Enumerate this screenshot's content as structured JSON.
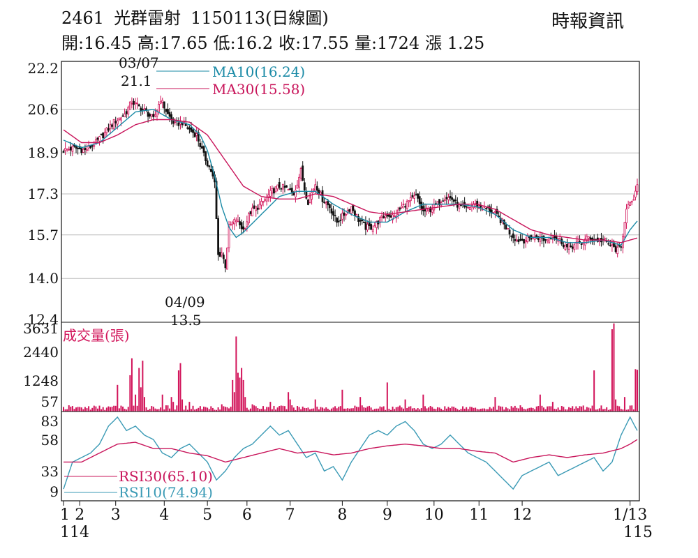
{
  "header": {
    "code": "2461",
    "name": "光群雷射",
    "date": "1150113",
    "kind": "(日線圖)",
    "source": "時報資訊",
    "ohlc": [
      {
        "label": "開:",
        "value": "16.45"
      },
      {
        "label": "高:",
        "value": "17.65"
      },
      {
        "label": "低:",
        "value": "16.2"
      },
      {
        "label": "收:",
        "value": "17.55"
      },
      {
        "label": "量:",
        "value": "1724"
      },
      {
        "label": "漲 ",
        "value": "1.25"
      }
    ]
  },
  "colors": {
    "up": "#d2145a",
    "down": "#111111",
    "ma10": "#1a8aa6",
    "ma30": "#c8145a",
    "volume": "#d2145a",
    "rsi10": "#3a9ab5",
    "rsi30": "#c8145a",
    "grid": "#bbbbbb"
  },
  "chart_data": [
    {
      "type": "candlestick",
      "y_ticks": [
        "22.2",
        "20.6",
        "18.9",
        "17.3",
        "15.7",
        "14.0",
        "12.4"
      ],
      "ylim": [
        12.4,
        22.2
      ],
      "legend": [
        {
          "label": "MA10(16.24)",
          "color": "#1a8aa6"
        },
        {
          "label": "MA30(15.58)",
          "color": "#c8145a"
        }
      ],
      "annotations": [
        {
          "date": "03/07",
          "value": "21.1"
        },
        {
          "date": "04/09",
          "value": "13.5"
        }
      ],
      "price_path": [
        [
          0,
          19.0
        ],
        [
          6,
          19.1
        ],
        [
          12,
          19.0
        ],
        [
          18,
          19.3
        ],
        [
          22,
          19.6
        ],
        [
          28,
          20.1
        ],
        [
          34,
          20.4
        ],
        [
          38,
          20.9
        ],
        [
          42,
          20.7
        ],
        [
          46,
          20.5
        ],
        [
          50,
          20.2
        ],
        [
          54,
          21.0
        ],
        [
          58,
          20.4
        ],
        [
          62,
          20.0
        ],
        [
          66,
          20.1
        ],
        [
          70,
          19.8
        ],
        [
          74,
          19.6
        ],
        [
          78,
          18.8
        ],
        [
          82,
          18.2
        ],
        [
          84,
          17.7
        ],
        [
          86,
          14.9
        ],
        [
          88,
          15.0
        ],
        [
          90,
          14.5
        ],
        [
          92,
          16.0
        ],
        [
          96,
          16.3
        ],
        [
          100,
          15.9
        ],
        [
          104,
          16.6
        ],
        [
          110,
          16.9
        ],
        [
          116,
          17.4
        ],
        [
          120,
          17.6
        ],
        [
          124,
          17.5
        ],
        [
          128,
          17.3
        ],
        [
          132,
          18.2
        ],
        [
          134,
          17.5
        ],
        [
          136,
          17.0
        ],
        [
          140,
          17.7
        ],
        [
          144,
          17.1
        ],
        [
          148,
          16.8
        ],
        [
          152,
          16.2
        ],
        [
          156,
          16.5
        ],
        [
          160,
          16.8
        ],
        [
          164,
          16.3
        ],
        [
          168,
          16.0
        ],
        [
          172,
          16.0
        ],
        [
          176,
          16.3
        ],
        [
          180,
          16.5
        ],
        [
          184,
          16.4
        ],
        [
          188,
          16.8
        ],
        [
          192,
          17.0
        ],
        [
          196,
          17.2
        ],
        [
          200,
          16.6
        ],
        [
          204,
          16.7
        ],
        [
          208,
          16.9
        ],
        [
          212,
          17.2
        ],
        [
          216,
          17.1
        ],
        [
          220,
          16.8
        ],
        [
          224,
          16.7
        ],
        [
          228,
          16.9
        ],
        [
          232,
          16.8
        ],
        [
          236,
          16.7
        ],
        [
          240,
          16.5
        ],
        [
          244,
          16.2
        ],
        [
          248,
          15.8
        ],
        [
          252,
          15.5
        ],
        [
          256,
          15.5
        ],
        [
          260,
          15.6
        ],
        [
          264,
          15.6
        ],
        [
          268,
          15.5
        ],
        [
          272,
          15.7
        ],
        [
          276,
          15.5
        ],
        [
          280,
          15.2
        ],
        [
          284,
          15.3
        ],
        [
          288,
          15.4
        ],
        [
          292,
          15.6
        ],
        [
          296,
          15.5
        ],
        [
          300,
          15.5
        ],
        [
          304,
          15.3
        ],
        [
          308,
          15.1
        ],
        [
          310,
          15.2
        ],
        [
          313,
          16.8
        ],
        [
          316,
          16.9
        ],
        [
          319,
          17.55
        ]
      ],
      "ma10_path": [
        [
          0,
          19.4
        ],
        [
          10,
          19.1
        ],
        [
          20,
          19.3
        ],
        [
          30,
          19.9
        ],
        [
          40,
          20.5
        ],
        [
          50,
          20.6
        ],
        [
          60,
          20.2
        ],
        [
          70,
          20.0
        ],
        [
          76,
          19.6
        ],
        [
          80,
          19.0
        ],
        [
          84,
          18.0
        ],
        [
          88,
          16.8
        ],
        [
          92,
          16.0
        ],
        [
          96,
          15.6
        ],
        [
          100,
          15.8
        ],
        [
          110,
          16.5
        ],
        [
          120,
          17.2
        ],
        [
          130,
          17.4
        ],
        [
          140,
          17.4
        ],
        [
          150,
          16.9
        ],
        [
          160,
          16.5
        ],
        [
          170,
          16.2
        ],
        [
          180,
          16.2
        ],
        [
          190,
          16.6
        ],
        [
          200,
          16.9
        ],
        [
          210,
          16.9
        ],
        [
          220,
          16.9
        ],
        [
          230,
          16.8
        ],
        [
          240,
          16.5
        ],
        [
          250,
          15.9
        ],
        [
          260,
          15.6
        ],
        [
          270,
          15.6
        ],
        [
          280,
          15.4
        ],
        [
          290,
          15.4
        ],
        [
          300,
          15.5
        ],
        [
          310,
          15.3
        ],
        [
          315,
          15.9
        ],
        [
          319,
          16.24
        ]
      ],
      "ma30_path": [
        [
          0,
          19.8
        ],
        [
          10,
          19.3
        ],
        [
          20,
          19.3
        ],
        [
          30,
          19.6
        ],
        [
          40,
          20.0
        ],
        [
          50,
          20.2
        ],
        [
          60,
          20.2
        ],
        [
          70,
          20.1
        ],
        [
          80,
          19.6
        ],
        [
          90,
          18.6
        ],
        [
          100,
          17.6
        ],
        [
          110,
          17.2
        ],
        [
          120,
          17.1
        ],
        [
          130,
          17.1
        ],
        [
          140,
          17.3
        ],
        [
          150,
          17.2
        ],
        [
          160,
          16.9
        ],
        [
          170,
          16.6
        ],
        [
          180,
          16.5
        ],
        [
          190,
          16.6
        ],
        [
          200,
          16.7
        ],
        [
          210,
          16.8
        ],
        [
          220,
          16.9
        ],
        [
          230,
          16.9
        ],
        [
          240,
          16.7
        ],
        [
          250,
          16.3
        ],
        [
          260,
          15.9
        ],
        [
          270,
          15.7
        ],
        [
          280,
          15.6
        ],
        [
          290,
          15.5
        ],
        [
          300,
          15.5
        ],
        [
          310,
          15.4
        ],
        [
          315,
          15.5
        ],
        [
          319,
          15.58
        ]
      ]
    },
    {
      "type": "bar",
      "title": "成交量(張)",
      "y_ticks": [
        "3631",
        "2440",
        "1248",
        "57"
      ],
      "ylim": [
        0,
        3631
      ],
      "spikes": [
        [
          30,
          1100
        ],
        [
          37,
          1500
        ],
        [
          38,
          2200
        ],
        [
          40,
          700
        ],
        [
          42,
          1800
        ],
        [
          43,
          1000
        ],
        [
          44,
          2100
        ],
        [
          45,
          600
        ],
        [
          55,
          700
        ],
        [
          60,
          600
        ],
        [
          61,
          400
        ],
        [
          64,
          1700
        ],
        [
          65,
          2000
        ],
        [
          66,
          500
        ],
        [
          70,
          400
        ],
        [
          88,
          300
        ],
        [
          94,
          1300
        ],
        [
          95,
          800
        ],
        [
          96,
          3100
        ],
        [
          97,
          1600
        ],
        [
          98,
          1400
        ],
        [
          99,
          1800
        ],
        [
          100,
          1300
        ],
        [
          101,
          600
        ],
        [
          105,
          300
        ],
        [
          115,
          400
        ],
        [
          125,
          800
        ],
        [
          126,
          500
        ],
        [
          140,
          500
        ],
        [
          155,
          900
        ],
        [
          165,
          600
        ],
        [
          180,
          1200
        ],
        [
          190,
          500
        ],
        [
          200,
          700
        ],
        [
          240,
          600
        ],
        [
          265,
          700
        ],
        [
          272,
          400
        ],
        [
          295,
          1700
        ],
        [
          305,
          3400
        ],
        [
          306,
          3640
        ],
        [
          307,
          500
        ],
        [
          312,
          600
        ],
        [
          318,
          1750
        ],
        [
          319,
          1724
        ]
      ]
    },
    {
      "type": "line",
      "y_ticks": [
        "83",
        "58",
        "33",
        "9"
      ],
      "ylim": [
        0,
        90
      ],
      "legend": [
        {
          "label": "RSI30(65.10)",
          "color": "#c8145a"
        },
        {
          "label": "RSI10(74.94)",
          "color": "#3a9ab5"
        }
      ],
      "rsi10_path": [
        [
          0,
          10
        ],
        [
          5,
          40
        ],
        [
          10,
          45
        ],
        [
          15,
          50
        ],
        [
          20,
          60
        ],
        [
          25,
          80
        ],
        [
          30,
          90
        ],
        [
          35,
          75
        ],
        [
          40,
          80
        ],
        [
          45,
          70
        ],
        [
          50,
          65
        ],
        [
          55,
          50
        ],
        [
          60,
          45
        ],
        [
          65,
          55
        ],
        [
          70,
          60
        ],
        [
          75,
          50
        ],
        [
          80,
          40
        ],
        [
          85,
          20
        ],
        [
          90,
          30
        ],
        [
          95,
          45
        ],
        [
          100,
          55
        ],
        [
          105,
          60
        ],
        [
          110,
          70
        ],
        [
          115,
          80
        ],
        [
          120,
          70
        ],
        [
          125,
          75
        ],
        [
          130,
          60
        ],
        [
          135,
          45
        ],
        [
          140,
          50
        ],
        [
          145,
          30
        ],
        [
          150,
          35
        ],
        [
          155,
          20
        ],
        [
          160,
          40
        ],
        [
          165,
          55
        ],
        [
          170,
          70
        ],
        [
          175,
          75
        ],
        [
          180,
          70
        ],
        [
          185,
          80
        ],
        [
          190,
          85
        ],
        [
          195,
          75
        ],
        [
          200,
          60
        ],
        [
          205,
          55
        ],
        [
          210,
          60
        ],
        [
          215,
          70
        ],
        [
          220,
          60
        ],
        [
          225,
          50
        ],
        [
          230,
          45
        ],
        [
          235,
          40
        ],
        [
          240,
          30
        ],
        [
          245,
          20
        ],
        [
          250,
          10
        ],
        [
          255,
          25
        ],
        [
          260,
          30
        ],
        [
          265,
          35
        ],
        [
          270,
          40
        ],
        [
          275,
          25
        ],
        [
          280,
          30
        ],
        [
          285,
          35
        ],
        [
          290,
          40
        ],
        [
          295,
          45
        ],
        [
          300,
          30
        ],
        [
          305,
          40
        ],
        [
          310,
          70
        ],
        [
          315,
          90
        ],
        [
          319,
          75
        ]
      ],
      "rsi30_path": [
        [
          0,
          40
        ],
        [
          10,
          40
        ],
        [
          20,
          50
        ],
        [
          30,
          60
        ],
        [
          40,
          62
        ],
        [
          50,
          55
        ],
        [
          60,
          55
        ],
        [
          70,
          50
        ],
        [
          80,
          47
        ],
        [
          90,
          40
        ],
        [
          100,
          45
        ],
        [
          110,
          50
        ],
        [
          120,
          55
        ],
        [
          130,
          50
        ],
        [
          140,
          52
        ],
        [
          150,
          48
        ],
        [
          160,
          50
        ],
        [
          170,
          55
        ],
        [
          180,
          58
        ],
        [
          190,
          60
        ],
        [
          200,
          58
        ],
        [
          210,
          55
        ],
        [
          220,
          55
        ],
        [
          230,
          52
        ],
        [
          240,
          50
        ],
        [
          250,
          40
        ],
        [
          260,
          45
        ],
        [
          270,
          48
        ],
        [
          280,
          45
        ],
        [
          290,
          48
        ],
        [
          300,
          50
        ],
        [
          310,
          55
        ],
        [
          315,
          60
        ],
        [
          319,
          65
        ]
      ]
    }
  ],
  "x_axis": {
    "ticks": [
      {
        "label": "1",
        "i": 0
      },
      {
        "label": "2",
        "i": 9
      },
      {
        "label": "3",
        "i": 29
      },
      {
        "label": "4",
        "i": 56
      },
      {
        "label": "5",
        "i": 80
      },
      {
        "label": "6",
        "i": 102
      },
      {
        "label": "7",
        "i": 126
      },
      {
        "label": "8",
        "i": 155
      },
      {
        "label": "9",
        "i": 180
      },
      {
        "label": "10",
        "i": 206
      },
      {
        "label": "11",
        "i": 231
      },
      {
        "label": "12",
        "i": 255
      },
      {
        "label": "1/13",
        "i": 315
      }
    ],
    "sub_left": "114",
    "sub_right": "115"
  }
}
